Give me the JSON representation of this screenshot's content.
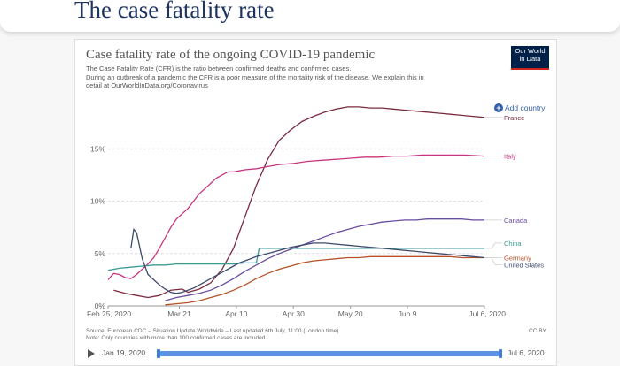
{
  "page": {
    "heading": "The case fatality rate"
  },
  "chart_card": {
    "title": "Case fatality rate of the ongoing COVID-19 pandemic",
    "subtitle_lines": [
      "The Case Fatality Rate (CFR) is the ratio between confirmed deaths and confirmed cases.",
      "During an outbreak of a pandemic the CFR is a poor measure of the mortality risk of the disease. We explain this in",
      "detail at OurWorldInData.org/Coronavirus"
    ],
    "logo_lines": [
      "Our World",
      "in Data"
    ],
    "add_country_label": "Add country",
    "footer_lines": [
      "Source: European CDC – Situation Update Worldwide – Last updated 6th July, 11:00 (London time)",
      "Note: Only countries with more than 100 confirmed cases are included."
    ],
    "license": "CC BY",
    "timeline": {
      "start_label": "Jan 19, 2020",
      "end_label": "Jul 6, 2020"
    }
  },
  "colors": {
    "france": "#7b2b3f",
    "italy": "#c8357f",
    "canada": "#6a4ca0",
    "china": "#3a9a96",
    "germany": "#b4522a",
    "united_states": "#3c4a6b",
    "grid": "#e0e0e0"
  },
  "chart_data": {
    "type": "line",
    "title": "Case fatality rate of the ongoing COVID-19 pandemic",
    "xlabel": "",
    "ylabel": "",
    "x_ticks": [
      "Feb 25, 2020",
      "Mar 21",
      "Apr 10",
      "Apr 30",
      "May 20",
      "Jun 9",
      "Jul 6, 2020"
    ],
    "x_tick_days": [
      0,
      25,
      45,
      65,
      85,
      105,
      132
    ],
    "y_ticks": [
      "0%",
      "5%",
      "10%",
      "15%"
    ],
    "y_tick_values": [
      0,
      5,
      10,
      15
    ],
    "ylim": [
      0,
      19.5
    ],
    "xlim": [
      0,
      132
    ],
    "series": [
      {
        "name": "France",
        "color_key": "france",
        "x": [
          2,
          6,
          10,
          14,
          18,
          22,
          26,
          28,
          32,
          36,
          40,
          44,
          48,
          52,
          56,
          60,
          64,
          68,
          72,
          76,
          80,
          84,
          88,
          92,
          96,
          100,
          104,
          108,
          112,
          116,
          120,
          124,
          128,
          132
        ],
        "y": [
          1.5,
          1.2,
          1.0,
          0.8,
          1.0,
          1.5,
          1.6,
          1.3,
          1.6,
          2.2,
          3.5,
          5.5,
          8.5,
          11.5,
          14.0,
          15.8,
          16.8,
          17.6,
          18.1,
          18.5,
          18.8,
          19.0,
          19.0,
          18.9,
          18.9,
          18.8,
          18.7,
          18.6,
          18.5,
          18.4,
          18.3,
          18.2,
          18.1,
          18.0
        ]
      },
      {
        "name": "Italy",
        "color_key": "italy",
        "x": [
          0,
          2,
          4,
          6,
          8,
          10,
          12,
          14,
          16,
          18,
          20,
          22,
          24,
          26,
          28,
          30,
          32,
          34,
          36,
          38,
          40,
          42,
          44,
          46,
          48,
          52,
          56,
          60,
          65,
          70,
          75,
          80,
          85,
          90,
          95,
          100,
          105,
          110,
          115,
          120,
          125,
          132
        ],
        "y": [
          2.5,
          3.1,
          3.0,
          2.7,
          2.6,
          3.0,
          3.5,
          4.0,
          4.6,
          5.5,
          6.5,
          7.5,
          8.3,
          8.8,
          9.3,
          10.0,
          10.7,
          11.2,
          11.7,
          12.2,
          12.5,
          12.8,
          12.8,
          12.9,
          13.0,
          13.1,
          13.3,
          13.5,
          13.6,
          13.8,
          13.9,
          14.0,
          14.1,
          14.2,
          14.2,
          14.3,
          14.3,
          14.4,
          14.4,
          14.4,
          14.4,
          14.3
        ]
      },
      {
        "name": "Canada",
        "color_key": "canada",
        "x": [
          20,
          24,
          28,
          32,
          36,
          40,
          44,
          48,
          52,
          56,
          60,
          64,
          68,
          72,
          76,
          80,
          84,
          88,
          92,
          96,
          100,
          104,
          108,
          112,
          116,
          120,
          124,
          128,
          132
        ],
        "y": [
          0.5,
          0.8,
          1.0,
          1.2,
          1.5,
          2.0,
          2.6,
          3.3,
          3.9,
          4.5,
          5.0,
          5.4,
          5.8,
          6.2,
          6.6,
          7.0,
          7.3,
          7.6,
          7.8,
          8.0,
          8.1,
          8.2,
          8.2,
          8.3,
          8.3,
          8.3,
          8.3,
          8.2,
          8.2
        ]
      },
      {
        "name": "China",
        "color_key": "china",
        "x": [
          0,
          4,
          8,
          12,
          16,
          20,
          24,
          28,
          32,
          36,
          40,
          44,
          48,
          52,
          53,
          56,
          60,
          70,
          80,
          90,
          100,
          110,
          120,
          132
        ],
        "y": [
          3.4,
          3.6,
          3.7,
          3.8,
          3.9,
          3.9,
          4.0,
          4.0,
          4.0,
          4.0,
          4.0,
          4.0,
          4.1,
          4.1,
          5.5,
          5.5,
          5.5,
          5.5,
          5.5,
          5.5,
          5.5,
          5.5,
          5.5,
          5.5
        ]
      },
      {
        "name": "Germany",
        "color_key": "germany",
        "x": [
          20,
          24,
          28,
          32,
          36,
          40,
          44,
          48,
          52,
          56,
          60,
          64,
          68,
          72,
          76,
          80,
          84,
          88,
          92,
          96,
          100,
          104,
          108,
          112,
          116,
          120,
          124,
          128,
          132
        ],
        "y": [
          0.1,
          0.2,
          0.3,
          0.5,
          0.8,
          1.1,
          1.5,
          2.0,
          2.6,
          3.1,
          3.5,
          3.8,
          4.1,
          4.3,
          4.4,
          4.5,
          4.6,
          4.6,
          4.7,
          4.7,
          4.7,
          4.7,
          4.7,
          4.7,
          4.7,
          4.7,
          4.6,
          4.6,
          4.6
        ]
      },
      {
        "name": "United States",
        "color_key": "united_states",
        "x": [
          8,
          9,
          10,
          12,
          14,
          16,
          18,
          20,
          22,
          24,
          26,
          28,
          30,
          32,
          34,
          36,
          38,
          40,
          42,
          44,
          46,
          48,
          52,
          56,
          60,
          64,
          68,
          72,
          76,
          80,
          84,
          88,
          92,
          96,
          100,
          104,
          108,
          112,
          116,
          120,
          124,
          128,
          132
        ],
        "y": [
          5.5,
          7.3,
          7.0,
          4.5,
          3.0,
          2.5,
          2.0,
          1.6,
          1.3,
          1.2,
          1.3,
          1.5,
          1.7,
          2.0,
          2.3,
          2.6,
          2.9,
          3.2,
          3.5,
          3.8,
          4.1,
          4.3,
          4.7,
          5.0,
          5.3,
          5.6,
          5.8,
          6.0,
          6.0,
          5.9,
          5.8,
          5.7,
          5.6,
          5.5,
          5.4,
          5.3,
          5.2,
          5.1,
          5.0,
          4.9,
          4.8,
          4.7,
          4.6
        ]
      }
    ]
  }
}
